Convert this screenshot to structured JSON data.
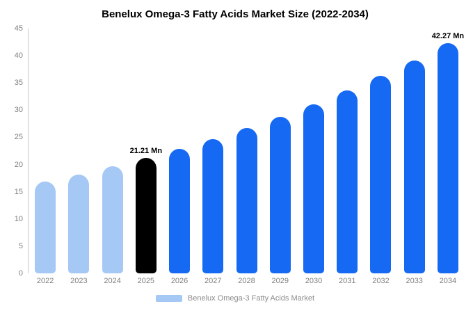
{
  "title": "Benelux Omega-3 Fatty Acids Market Size (2022-2034)",
  "legend": {
    "label": "Benelux Omega-3 Fatty Acids Market",
    "swatch_color": "#a6c8f5"
  },
  "chart_data": {
    "type": "bar",
    "title": "Benelux Omega-3 Fatty Acids Market Size (2022-2034)",
    "unit": "Mn",
    "categories": [
      "2022",
      "2023",
      "2024",
      "2025",
      "2026",
      "2027",
      "2028",
      "2029",
      "2030",
      "2031",
      "2032",
      "2033",
      "2034"
    ],
    "values": [
      16.85,
      18.19,
      19.64,
      21.21,
      22.9,
      24.72,
      26.69,
      28.81,
      31.11,
      33.58,
      36.26,
      39.15,
      42.27
    ],
    "bar_colors": [
      "#a6c8f5",
      "#a6c8f5",
      "#a6c8f5",
      "#000000",
      "#1669f2",
      "#1669f2",
      "#1669f2",
      "#1669f2",
      "#1669f2",
      "#1669f2",
      "#1669f2",
      "#1669f2",
      "#1669f2"
    ],
    "data_labels": {
      "2025": "21.21 Mn",
      "2034": "42.27 Mn"
    },
    "xlabel": "",
    "ylabel": "",
    "ylim": [
      0,
      45
    ],
    "yticks": [
      0,
      5,
      10,
      15,
      20,
      25,
      30,
      35,
      40,
      45
    ],
    "grid": false,
    "legend_position": "bottom"
  }
}
